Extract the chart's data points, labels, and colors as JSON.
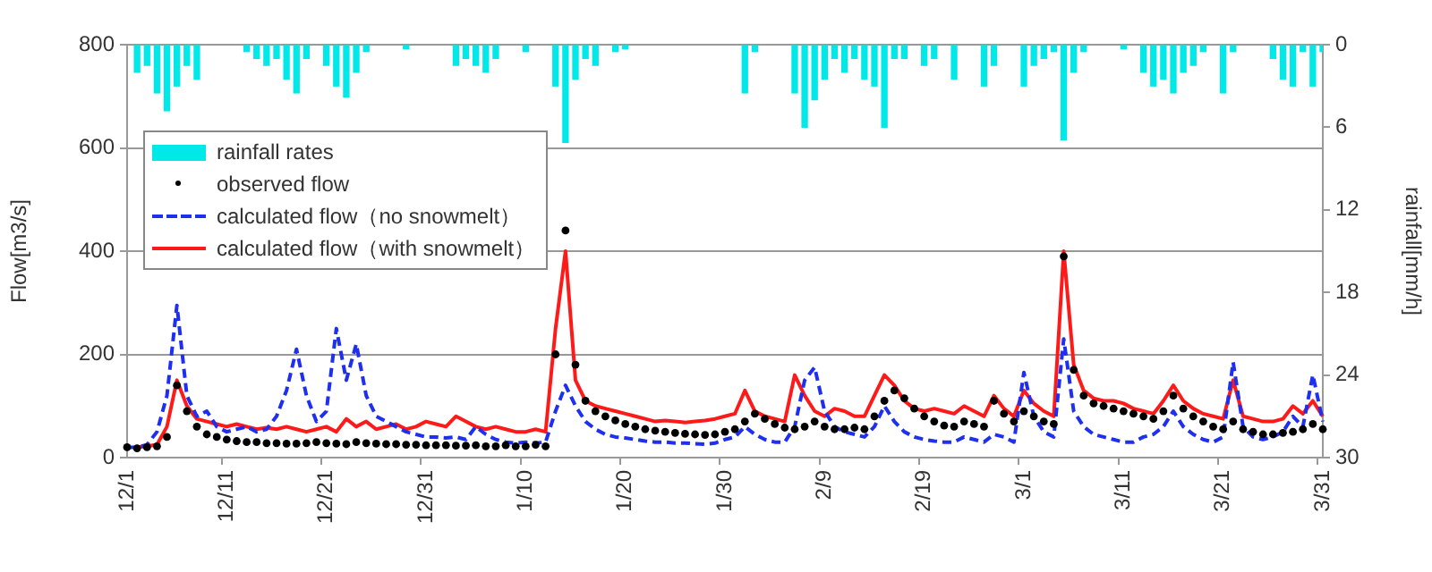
{
  "chart_data": {
    "type": "line",
    "ylabel": "Flow[m3/s]",
    "y2label": "rainfall[mm/h]",
    "categories": [
      "12/1",
      null,
      null,
      null,
      null,
      null,
      null,
      null,
      null,
      null,
      "12/11",
      null,
      null,
      null,
      null,
      null,
      null,
      null,
      null,
      null,
      "12/21",
      null,
      null,
      null,
      null,
      null,
      null,
      null,
      null,
      null,
      "12/31",
      null,
      null,
      null,
      null,
      null,
      null,
      null,
      null,
      null,
      "1/10",
      null,
      null,
      null,
      null,
      null,
      null,
      null,
      null,
      null,
      "1/20",
      null,
      null,
      null,
      null,
      null,
      null,
      null,
      null,
      null,
      "1/30",
      null,
      null,
      null,
      null,
      null,
      null,
      null,
      null,
      null,
      "2/9",
      null,
      null,
      null,
      null,
      null,
      null,
      null,
      null,
      null,
      "2/19",
      null,
      null,
      null,
      null,
      null,
      null,
      null,
      null,
      null,
      "3/1",
      null,
      null,
      null,
      null,
      null,
      null,
      null,
      null,
      null,
      "3/11",
      null,
      null,
      null,
      null,
      null,
      null,
      null,
      null,
      null,
      "3/21",
      null,
      null,
      null,
      null,
      null,
      null,
      null,
      null,
      null,
      "3/31"
    ],
    "ylim": [
      0,
      800
    ],
    "yticks": [
      0,
      200,
      400,
      600,
      800
    ],
    "y2lim": [
      30,
      0
    ],
    "y2ticks": [
      0,
      6,
      12,
      18,
      24,
      30
    ],
    "grid": "y",
    "legend": "top left",
    "series": [
      {
        "name": "rainfall rates",
        "type": "bar",
        "axis": "y2",
        "color": "#00e8e8",
        "values": [
          null,
          2,
          1.5,
          3.5,
          4.8,
          3,
          1.5,
          2.5,
          null,
          null,
          null,
          null,
          0.5,
          1,
          1.5,
          1,
          2.5,
          3.5,
          1,
          null,
          1.5,
          3,
          3.8,
          2,
          0.5,
          null,
          null,
          null,
          0.3,
          null,
          null,
          null,
          null,
          1.5,
          1,
          1.5,
          2,
          1,
          null,
          null,
          0.5,
          null,
          null,
          3,
          7.1,
          2.5,
          1,
          1.5,
          null,
          0.5,
          0.3,
          null,
          null,
          null,
          null,
          null,
          null,
          null,
          null,
          null,
          null,
          null,
          3.5,
          0.5,
          null,
          null,
          null,
          3.5,
          6,
          4,
          2.5,
          1,
          2,
          1,
          2.5,
          3,
          6,
          1,
          1,
          null,
          1.5,
          1,
          null,
          2.5,
          null,
          null,
          3,
          1.5,
          null,
          null,
          3,
          1.5,
          1,
          0.5,
          6.9,
          2,
          0.5,
          null,
          null,
          null,
          0.3,
          null,
          2,
          3,
          2.5,
          3.5,
          2,
          1.5,
          0.5,
          null,
          3.5,
          0.5,
          null,
          null,
          null,
          1,
          2.5,
          3,
          0.5,
          3,
          0.5
        ]
      },
      {
        "name": "observed flow",
        "type": "scatter",
        "marker": "circle",
        "color": "#000000",
        "values": [
          20,
          18,
          20,
          22,
          40,
          140,
          90,
          60,
          45,
          40,
          35,
          32,
          30,
          30,
          28,
          28,
          27,
          27,
          28,
          30,
          28,
          27,
          26,
          30,
          28,
          27,
          26,
          26,
          25,
          25,
          24,
          24,
          24,
          23,
          23,
          24,
          22,
          22,
          24,
          22,
          22,
          25,
          22,
          200,
          440,
          180,
          110,
          90,
          80,
          72,
          65,
          60,
          55,
          52,
          50,
          48,
          46,
          45,
          44,
          45,
          50,
          55,
          70,
          85,
          75,
          65,
          58,
          55,
          60,
          70,
          60,
          55,
          55,
          58,
          55,
          80,
          110,
          130,
          115,
          95,
          80,
          70,
          62,
          60,
          70,
          65,
          60,
          110,
          85,
          70,
          90,
          80,
          70,
          65,
          390,
          170,
          120,
          105,
          100,
          95,
          90,
          85,
          80,
          75,
          90,
          120,
          95,
          80,
          70,
          60,
          55,
          70,
          55,
          50,
          45,
          45,
          48,
          50,
          55,
          65,
          55
        ]
      },
      {
        "name": "calculated flow（no snowmelt）",
        "line_style": "dashed",
        "marker": "none",
        "color": "#1f2ff0",
        "values": [
          20,
          20,
          25,
          50,
          120,
          295,
          120,
          80,
          90,
          60,
          50,
          55,
          60,
          50,
          55,
          80,
          130,
          210,
          120,
          70,
          90,
          250,
          150,
          220,
          120,
          80,
          70,
          60,
          50,
          45,
          40,
          40,
          38,
          40,
          35,
          60,
          45,
          35,
          30,
          28,
          30,
          28,
          30,
          90,
          140,
          100,
          70,
          55,
          45,
          40,
          38,
          35,
          32,
          30,
          30,
          28,
          28,
          27,
          26,
          28,
          35,
          40,
          60,
          45,
          35,
          30,
          30,
          60,
          150,
          175,
          90,
          60,
          50,
          45,
          40,
          60,
          100,
          70,
          50,
          40,
          35,
          32,
          30,
          30,
          40,
          35,
          30,
          45,
          40,
          30,
          165,
          80,
          50,
          40,
          230,
          90,
          60,
          45,
          40,
          35,
          30,
          30,
          40,
          45,
          60,
          90,
          60,
          45,
          35,
          30,
          40,
          185,
          60,
          40,
          35,
          40,
          50,
          80,
          60,
          160,
          70
        ]
      },
      {
        "name": "calculated flow（with snowmelt）",
        "line_style": "solid",
        "marker": "none",
        "color": "#ff1a1a",
        "values": [
          null,
          20,
          22,
          25,
          60,
          150,
          100,
          75,
          70,
          65,
          60,
          65,
          60,
          55,
          58,
          55,
          60,
          55,
          50,
          55,
          60,
          50,
          75,
          60,
          70,
          55,
          60,
          65,
          55,
          60,
          70,
          65,
          60,
          80,
          70,
          60,
          55,
          60,
          55,
          50,
          50,
          55,
          50,
          250,
          400,
          150,
          110,
          100,
          95,
          90,
          85,
          80,
          75,
          70,
          72,
          70,
          68,
          70,
          72,
          75,
          80,
          85,
          130,
          90,
          80,
          75,
          70,
          160,
          120,
          90,
          80,
          95,
          90,
          80,
          80,
          120,
          160,
          140,
          110,
          95,
          90,
          95,
          90,
          85,
          100,
          90,
          80,
          120,
          95,
          80,
          130,
          105,
          90,
          80,
          400,
          180,
          130,
          115,
          110,
          110,
          105,
          95,
          90,
          85,
          110,
          140,
          110,
          95,
          85,
          80,
          75,
          150,
          80,
          75,
          70,
          70,
          75,
          100,
          85,
          110,
          80
        ]
      }
    ]
  }
}
